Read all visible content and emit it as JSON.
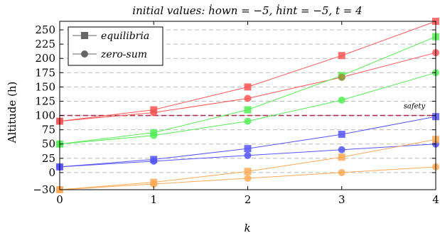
{
  "chart_data": {
    "type": "line",
    "title": "initial values: ḣown = −5, ḣint = −5, t = 4",
    "xlabel": "k",
    "ylabel": "Altitude (h)",
    "xlim": [
      0,
      4
    ],
    "ylim": [
      -30,
      265
    ],
    "x_ticks": [
      "0",
      "1",
      "2",
      "3",
      "4"
    ],
    "y_ticks": [
      "−30",
      "0",
      "25",
      "50",
      "75",
      "100",
      "125",
      "150",
      "175",
      "200",
      "225",
      "250"
    ],
    "y_tick_values": [
      -30,
      0,
      25,
      50,
      75,
      100,
      125,
      150,
      175,
      200,
      225,
      250
    ],
    "grid": "horizontal dashed",
    "legend_position": "top-left",
    "legend": [
      {
        "label": "equilibria",
        "marker": "square"
      },
      {
        "label": "zero-sum",
        "marker": "circle"
      }
    ],
    "reference_line": {
      "y": 100,
      "label": "safety",
      "color": "#b03050"
    },
    "x": [
      0,
      1,
      2,
      3,
      4
    ],
    "series": [
      {
        "marker": "square",
        "color": "#ff5555",
        "values": [
          90,
          110,
          150,
          205,
          265
        ]
      },
      {
        "marker": "circle",
        "color": "#ff5555",
        "values": [
          90,
          105,
          130,
          167,
          210
        ]
      },
      {
        "marker": "square",
        "color": "#55ee55",
        "values": [
          50,
          70,
          110,
          170,
          238
        ]
      },
      {
        "marker": "circle",
        "color": "#55ee55",
        "values": [
          50,
          65,
          90,
          127,
          175
        ]
      },
      {
        "marker": "square",
        "color": "#5555ff",
        "values": [
          10,
          23,
          42,
          67,
          98
        ]
      },
      {
        "marker": "circle",
        "color": "#5555ff",
        "values": [
          10,
          20,
          30,
          40,
          50
        ]
      },
      {
        "marker": "square",
        "color": "#ffaa55",
        "values": [
          -30,
          -17,
          2,
          27,
          58
        ]
      },
      {
        "marker": "circle",
        "color": "#ffaa55",
        "values": [
          -30,
          -20,
          -10,
          0,
          10
        ]
      }
    ],
    "overlap_point": {
      "x": 3,
      "y": 167,
      "color": "#999944",
      "marker": "circle"
    }
  }
}
